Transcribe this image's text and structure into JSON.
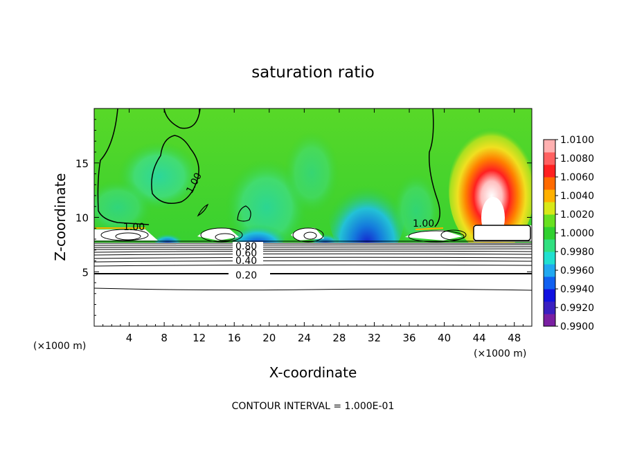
{
  "chart_data": {
    "type": "heatmap",
    "title": "saturation ratio",
    "xlabel": "X-coordinate",
    "ylabel": "Z-coordinate",
    "x_unit_left": "(×1000 m)",
    "x_unit_right": "(×1000 m)",
    "xlim": [
      0,
      50
    ],
    "ylim": [
      0,
      20
    ],
    "x_ticks": [
      "4",
      "8",
      "12",
      "16",
      "20",
      "24",
      "28",
      "32",
      "36",
      "40",
      "44",
      "48"
    ],
    "y_ticks": [
      "5",
      "10",
      "15"
    ],
    "footnote": "CONTOUR INTERVAL = 1.000E-01",
    "contour_labels": [
      "1.00",
      "1.00",
      "1.00",
      "0.80",
      "0.60",
      "0.40",
      "0.20"
    ],
    "colorbar": {
      "range": [
        0.99,
        1.01
      ],
      "labels": [
        "1.0100",
        "1.0080",
        "1.0060",
        "1.0040",
        "1.0020",
        "1.0000",
        "0.9980",
        "0.9960",
        "0.9940",
        "0.9920",
        "0.9900"
      ],
      "colors": [
        "#7a1fa2",
        "#3a1fc0",
        "#1010e0",
        "#1060f0",
        "#20a8f0",
        "#20e0d0",
        "#30e080",
        "#30d030",
        "#68e020",
        "#d8e818",
        "#ffb000",
        "#ff6a00",
        "#ff2020",
        "#ff6060",
        "#ffb0b0"
      ]
    },
    "series": [
      {
        "name": "",
        "values": [
          {
            "x": 45.5,
            "z": 12.5,
            "level": 1.009
          },
          {
            "x": 45.5,
            "z": 10.5,
            "level": 1.01
          },
          {
            "x": 20,
            "z": 9.0,
            "level": 0.9955
          },
          {
            "x": 31,
            "z": 8.5,
            "level": 0.9925
          },
          {
            "x": 22,
            "z": 14.0,
            "level": 0.9975
          },
          {
            "x": 8,
            "z": 13.0,
            "level": 0.997
          },
          {
            "x": 20,
            "z": 18.0,
            "level": 1.0003
          }
        ]
      }
    ],
    "grid": false,
    "legend": "right"
  }
}
